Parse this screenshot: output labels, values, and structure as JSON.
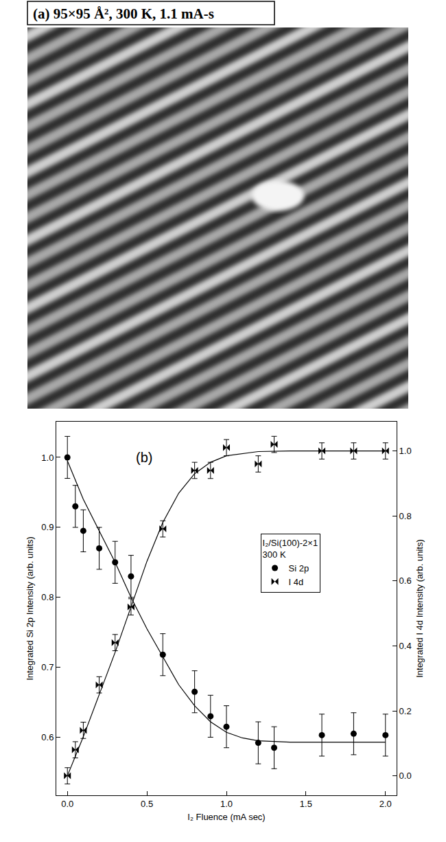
{
  "panel_a": {
    "title": "(a) 95×95 Å², 300 K, 1.1 mA-s"
  },
  "chart_data": {
    "type": "scatter",
    "panel_label": "(b)",
    "x_label": "I₂ Fluence (mA sec)",
    "y_label": "Integrated Si 2p Intensity (arb. units)",
    "y2_label": "Integrated I 4d Intensity (arb. units)",
    "legend_title": [
      "I₂/Si(100)-2×1",
      "300 K"
    ],
    "legend": "right",
    "grid": false,
    "xlim": [
      -0.07,
      2.07
    ],
    "xticks": [
      {
        "value": 0,
        "label": "0.0"
      },
      {
        "value": 0.5,
        "label": "0.5"
      },
      {
        "value": 1,
        "label": "1.0"
      },
      {
        "value": 1.5,
        "label": "1.5"
      },
      {
        "value": 2,
        "label": "2.0"
      }
    ],
    "ylim": [
      0.517,
      1.051
    ],
    "yticks": [
      0.6,
      0.7,
      0.8,
      0.9,
      {
        "value": 1,
        "label": "1.0"
      }
    ],
    "y2lim": [
      -0.06,
      1.09
    ],
    "y2ticks": [
      {
        "value": 0,
        "label": "0.0"
      },
      0.2,
      0.4,
      0.6,
      0.8,
      {
        "value": 1,
        "label": "1.0"
      }
    ],
    "series": [
      {
        "name": "Si 2p",
        "color": "#000000",
        "marker": "circle",
        "axis": "y",
        "x": [
          0,
          0.05,
          0.1,
          0.2,
          0.3,
          0.4,
          0.6,
          0.8,
          0.9,
          1.0,
          1.2,
          1.3,
          1.6,
          1.8,
          2.0
        ],
        "values": [
          1.0,
          0.93,
          0.895,
          0.87,
          0.85,
          0.83,
          0.718,
          0.665,
          0.63,
          0.615,
          0.592,
          0.585,
          0.603,
          0.605,
          0.603
        ],
        "errors": [
          0.03,
          0.03,
          0.03,
          0.03,
          0.03,
          0.03,
          0.03,
          0.03,
          0.03,
          0.03,
          0.03,
          0.03,
          0.03,
          0.03,
          0.03
        ]
      },
      {
        "name": "I 4d",
        "color": "#000000",
        "marker": "bowtie",
        "axis": "y2",
        "x": [
          0,
          0.05,
          0.1,
          0.2,
          0.3,
          0.4,
          0.6,
          0.8,
          0.9,
          1.0,
          1.2,
          1.3,
          1.6,
          1.8,
          2.0
        ],
        "values": [
          0.0,
          0.08,
          0.14,
          0.28,
          0.41,
          0.52,
          0.76,
          0.94,
          0.94,
          1.01,
          0.96,
          1.02,
          1.0,
          1.0,
          1.0
        ],
        "errors": [
          0.025,
          0.025,
          0.025,
          0.025,
          0.025,
          0.025,
          0.025,
          0.025,
          0.025,
          0.025,
          0.025,
          0.025,
          0.025,
          0.025,
          0.025
        ]
      }
    ],
    "fit_curves": [
      {
        "series": "Si 2p",
        "x": [
          0,
          0.1,
          0.2,
          0.3,
          0.4,
          0.5,
          0.6,
          0.7,
          0.8,
          0.9,
          1.0,
          1.1,
          1.2,
          1.4,
          1.6,
          2.0
        ],
        "values": [
          0.995,
          0.94,
          0.895,
          0.85,
          0.8,
          0.755,
          0.715,
          0.675,
          0.645,
          0.622,
          0.607,
          0.599,
          0.595,
          0.593,
          0.593,
          0.593
        ]
      },
      {
        "series": "I 4d",
        "x": [
          0,
          0.1,
          0.2,
          0.3,
          0.4,
          0.5,
          0.6,
          0.7,
          0.8,
          0.9,
          1.0,
          1.2,
          1.4,
          2.0
        ],
        "values": [
          0.0,
          0.12,
          0.25,
          0.38,
          0.52,
          0.66,
          0.78,
          0.87,
          0.93,
          0.965,
          0.985,
          0.998,
          1.0,
          1.0
        ]
      }
    ]
  }
}
